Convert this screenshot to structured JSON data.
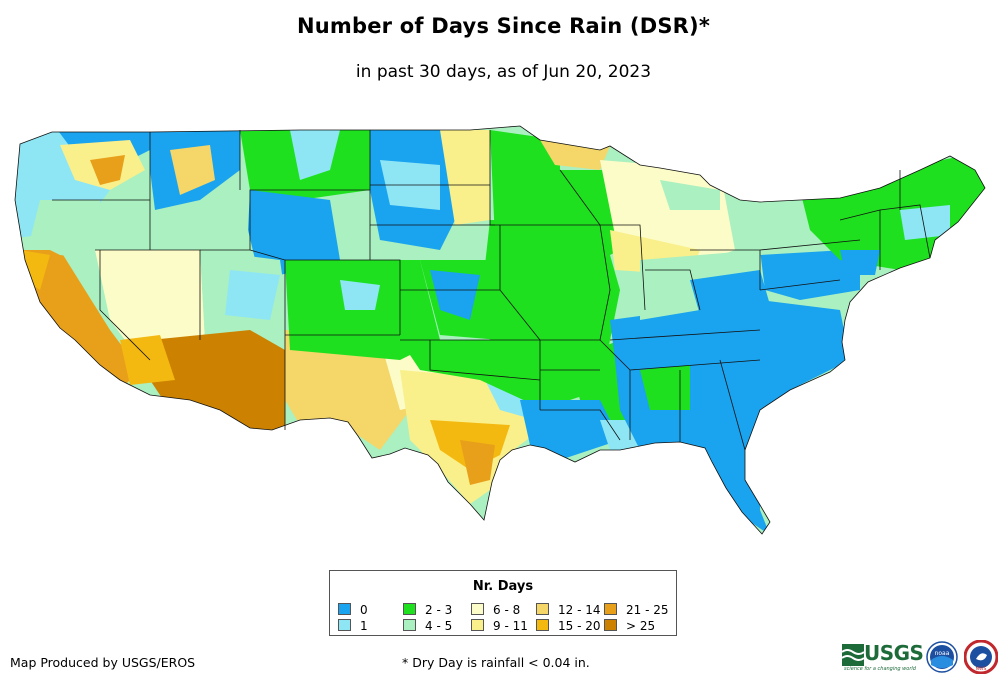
{
  "title": "Number of Days Since Rain (DSR)*",
  "subtitle": "in past 30 days, as of Jun 20, 2023",
  "legend": {
    "title": "Nr. Days",
    "items": [
      {
        "label": "0",
        "color": "#1aa3ef"
      },
      {
        "label": "1",
        "color": "#8ee6f5"
      },
      {
        "label": "2 - 3",
        "color": "#1ee01e"
      },
      {
        "label": "4 - 5",
        "color": "#aaf0c0"
      },
      {
        "label": "6 - 8",
        "color": "#fcfcc8"
      },
      {
        "label": "9 - 11",
        "color": "#f9f08c"
      },
      {
        "label": "12 - 14",
        "color": "#f5d669"
      },
      {
        "label": "15 - 20",
        "color": "#f4b911"
      },
      {
        "label": "21 - 25",
        "color": "#e8a01a"
      },
      {
        "label": "> 25",
        "color": "#cc8200"
      }
    ]
  },
  "credit": "Map Produced by USGS/EROS",
  "footnote": "* Dry Day is rainfall < 0.04 in.",
  "logos": {
    "usgs": "USGS",
    "usgs_tagline": "science for a changing world",
    "noaa": "noaa",
    "nws": "NWS"
  }
}
